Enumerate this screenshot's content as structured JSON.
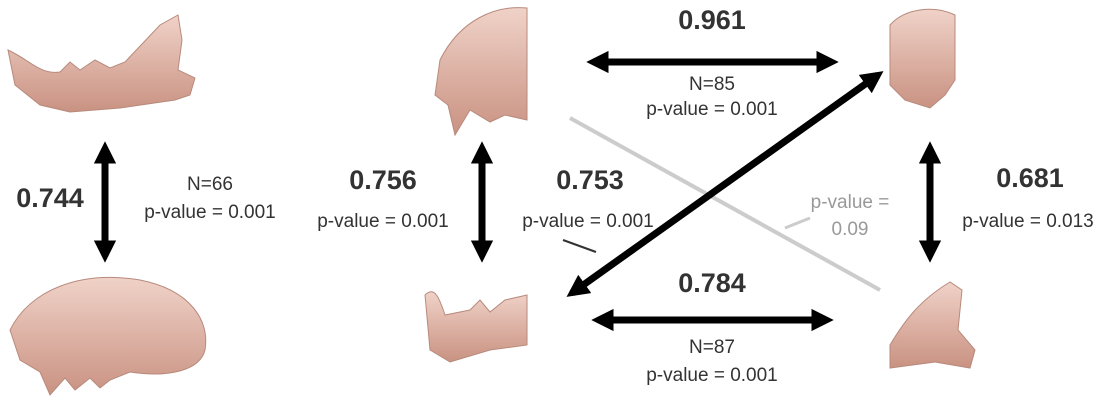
{
  "left": {
    "value": "0.744",
    "n": "N=66",
    "p": "p-value = 0.001"
  },
  "top": {
    "value": "0.961",
    "n": "N=85",
    "p": "p-value = 0.001"
  },
  "middle_vertical": {
    "value": "0.756",
    "p": "p-value = 0.001"
  },
  "diagonal": {
    "value": "0.753",
    "p": "p-value = 0.001"
  },
  "right_vertical": {
    "value": "0.681",
    "p": "p-value = 0.013"
  },
  "bottom": {
    "value": "0.784",
    "n": "N=87",
    "p": "p-value = 0.001"
  },
  "nonsignificant": {
    "p_label": "p-value =",
    "p_value": "0.09"
  }
}
